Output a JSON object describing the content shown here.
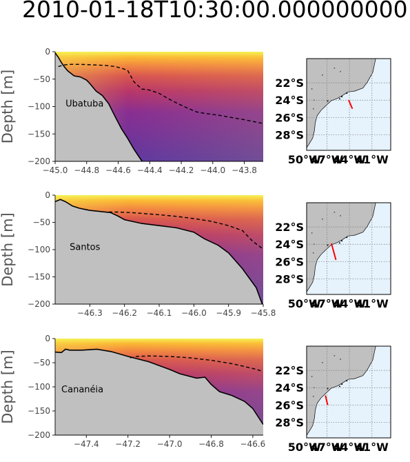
{
  "title": "2010-01-18T10:30:00.000000000",
  "ylabel": "Depth [m]",
  "colors": {
    "seabed": "#c0c0c0",
    "seabed_line": "#000000",
    "isoline": "#000000",
    "section_line": "#ff0000",
    "ocean": "#e6f2fc",
    "land": "#c0c0c0",
    "colormap": [
      "#f5f257",
      "#fbb934",
      "#f38a40",
      "#d9564f",
      "#b83769",
      "#892e92",
      "#5e389f"
    ]
  },
  "chart_data": [
    {
      "type": "area",
      "name": "Ubatuba",
      "xlim": [
        -45.0,
        -43.68
      ],
      "ylim": [
        -200,
        0
      ],
      "xticks": [
        -45.0,
        -44.8,
        -44.6,
        -44.4,
        -44.2,
        -44.0,
        -43.8
      ],
      "xtick_labels": [
        "−45.0",
        "−44.8",
        "−44.6",
        "−44.4",
        "−44.2",
        "−44.0",
        "−43.8"
      ],
      "yticks": [
        0,
        -50,
        -100,
        -150,
        -200
      ],
      "ytick_labels": [
        "0",
        "−50",
        "−100",
        "−150",
        "−200"
      ],
      "bathymetry": {
        "x": [
          -45.0,
          -44.98,
          -44.96,
          -44.94,
          -44.92,
          -44.88,
          -44.84,
          -44.8,
          -44.78,
          -44.74,
          -44.7,
          -44.66,
          -44.62,
          -44.58,
          -44.54,
          -44.5,
          -44.46,
          -44.43,
          -44.4
        ],
        "depth": [
          -2,
          -10,
          -20,
          -28,
          -35,
          -44,
          -46,
          -52,
          -58,
          -72,
          -80,
          -95,
          -118,
          -140,
          -158,
          -178,
          -195,
          -207,
          -218
        ]
      },
      "isoline": {
        "x": [
          -44.98,
          -44.94,
          -44.9,
          -44.84,
          -44.76,
          -44.68,
          -44.62,
          -44.58,
          -44.54,
          -44.5,
          -44.45,
          -44.4,
          -44.34,
          -44.28,
          -44.22,
          -44.16,
          -44.1,
          -44.04,
          -43.96,
          -43.88,
          -43.8,
          -43.68
        ],
        "depth": [
          -27,
          -24,
          -23,
          -23,
          -24,
          -25,
          -27,
          -30,
          -34,
          -55,
          -68,
          -70,
          -76,
          -86,
          -95,
          -103,
          -110,
          -113,
          -116,
          -120,
          -124,
          -131
        ]
      },
      "map_section": {
        "lon": [
          -44.1,
          -43.6
        ],
        "lat": [
          -24.0,
          -25.0
        ]
      }
    },
    {
      "type": "area",
      "name": "Santos",
      "xlim": [
        -46.4,
        -45.8
      ],
      "ylim": [
        -200,
        0
      ],
      "xticks": [
        -46.3,
        -46.2,
        -46.1,
        -46.0,
        -45.9,
        -45.8
      ],
      "xtick_labels": [
        "−46.3",
        "−46.2",
        "−46.1",
        "−46.0",
        "−45.9",
        "−45.8"
      ],
      "yticks": [
        0,
        -50,
        -100,
        -150,
        -200
      ],
      "ytick_labels": [
        "0",
        "−50",
        "−100",
        "−150",
        "−200"
      ],
      "bathymetry": {
        "x": [
          -46.4,
          -46.385,
          -46.37,
          -46.35,
          -46.33,
          -46.3,
          -46.27,
          -46.24,
          -46.22,
          -46.2,
          -46.15,
          -46.1,
          -46.05,
          -46.0,
          -45.97,
          -45.93,
          -45.9,
          -45.86,
          -45.82,
          -45.8
        ],
        "depth": [
          -12,
          -8,
          -12,
          -20,
          -24,
          -28,
          -30,
          -32,
          -38,
          -45,
          -52,
          -56,
          -60,
          -68,
          -80,
          -92,
          -106,
          -135,
          -170,
          -205
        ]
      },
      "isoline": {
        "x": [
          -46.245,
          -46.22,
          -46.18,
          -46.14,
          -46.1,
          -46.05,
          -46.0,
          -45.95,
          -45.9,
          -45.86,
          -45.83,
          -45.8
        ],
        "depth": [
          -31,
          -31,
          -32,
          -34,
          -36,
          -39,
          -43,
          -48,
          -56,
          -65,
          -85,
          -99
        ]
      },
      "map_section": {
        "lon": [
          -46.4,
          -45.8
        ],
        "lat": [
          -23.9,
          -25.8
        ]
      }
    },
    {
      "type": "area",
      "name": "Cananéia",
      "xlim": [
        -47.55,
        -46.55
      ],
      "ylim": [
        -200,
        0
      ],
      "xticks": [
        -47.4,
        -47.2,
        -47.0,
        -46.8,
        -46.6
      ],
      "xtick_labels": [
        "−47.4",
        "−47.2",
        "−47.0",
        "−46.8",
        "−46.6"
      ],
      "yticks": [
        0,
        -50,
        -100,
        -150,
        -200
      ],
      "ytick_labels": [
        "0",
        "−50",
        "−100",
        "−150",
        "−200"
      ],
      "bathymetry": {
        "x": [
          -47.55,
          -47.52,
          -47.5,
          -47.48,
          -47.42,
          -47.35,
          -47.28,
          -47.2,
          -47.1,
          -47.0,
          -46.95,
          -46.87,
          -46.83,
          -46.8,
          -46.76,
          -46.7,
          -46.64,
          -46.6,
          -46.57,
          -46.55
        ],
        "depth": [
          -28,
          -29,
          -22,
          -24,
          -24,
          -22,
          -27,
          -37,
          -48,
          -64,
          -73,
          -82,
          -80,
          -95,
          -110,
          -118,
          -130,
          -145,
          -165,
          -178
        ]
      },
      "isoline": {
        "x": [
          -47.19,
          -47.16,
          -47.1,
          -47.0,
          -46.9,
          -46.8,
          -46.7,
          -46.6,
          -46.55
        ],
        "depth": [
          -40,
          -37,
          -36,
          -37,
          -40,
          -45,
          -52,
          -62,
          -68
        ]
      },
      "map_section": {
        "lon": [
          -47.2,
          -46.9
        ],
        "lat": [
          -24.9,
          -26.0
        ]
      }
    }
  ],
  "map": {
    "lat_labels": [
      "22°S",
      "24°S",
      "26°S",
      "28°S"
    ],
    "lon_labels": [
      "50°W",
      "47°W",
      "44°W",
      "41°W"
    ],
    "lat_values": [
      -22,
      -24,
      -26,
      -28
    ],
    "lon_values": [
      -50,
      -47,
      -44,
      -41
    ],
    "extent": {
      "lon": [
        -49.7,
        -38.5
      ],
      "lat": [
        -29.8,
        -19.2
      ]
    }
  }
}
